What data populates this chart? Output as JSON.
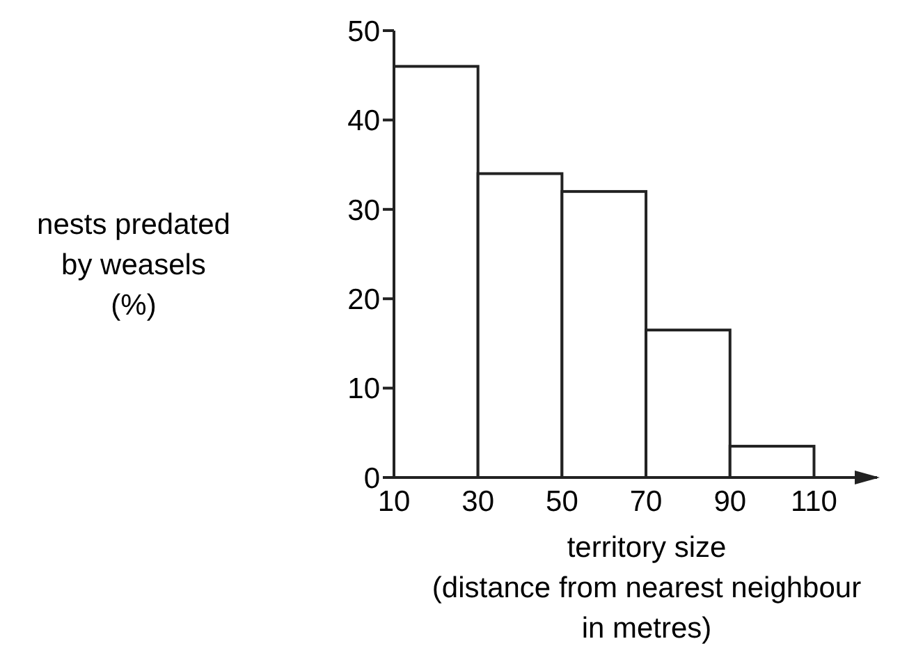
{
  "chart_data": {
    "type": "histogram",
    "xlabel": "territory size\n(distance from nearest neighbour\nin metres)",
    "ylabel": "nests predated\nby weasels\n(%)",
    "bins": [
      10,
      30,
      50,
      70,
      90,
      110
    ],
    "values": [
      46,
      34,
      32,
      16.5,
      3.5
    ],
    "color": "#ffffff",
    "xlim": [
      10,
      125
    ],
    "xticks": [
      10,
      30,
      50,
      70,
      90,
      110
    ],
    "ylim": [
      0,
      50
    ],
    "yticks": [
      0,
      10,
      20,
      30,
      40,
      50
    ],
    "grid": false
  }
}
